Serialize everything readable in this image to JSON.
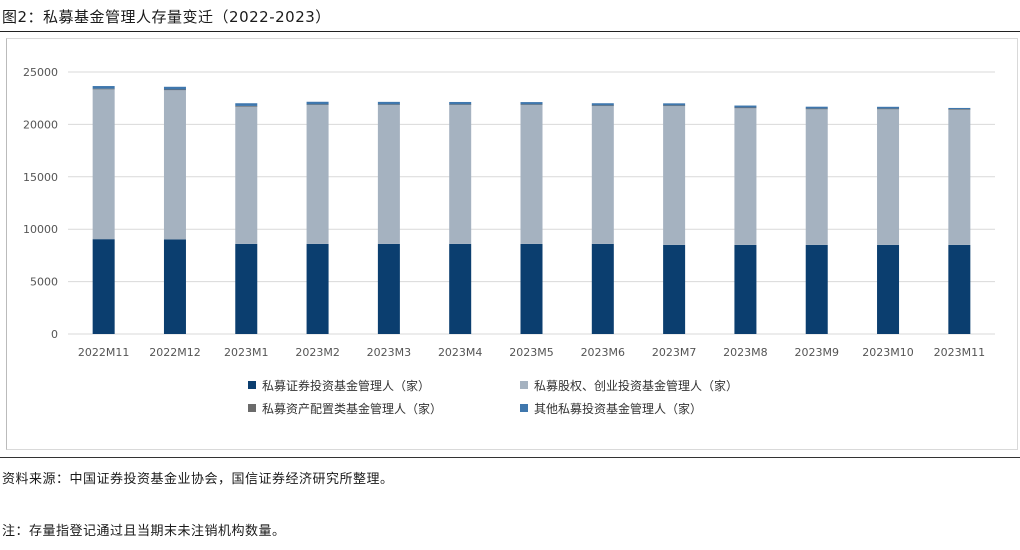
{
  "header": {
    "title": "图2：私募基金管理人存量变迁（2022-2023）"
  },
  "footer": {
    "source": "资料来源：中国证券投资基金业协会，国信证券经济研究所整理。",
    "note": "注：存量指登记通过且当期末未注销机构数量。"
  },
  "colors": {
    "series1": "#0b3e6f",
    "series2": "#a5b2c0",
    "series3": "#6b6b6b",
    "series4": "#3f77ad",
    "grid": "#d9d9d9"
  },
  "chart_data": {
    "type": "bar",
    "stacked": true,
    "title": "",
    "xlabel": "",
    "ylabel": "",
    "ylim": [
      0,
      25000
    ],
    "yticks": [
      0,
      5000,
      10000,
      15000,
      20000,
      25000
    ],
    "grid": true,
    "legend_position": "bottom",
    "categories": [
      "2022M11",
      "2022M12",
      "2023M1",
      "2023M2",
      "2023M3",
      "2023M4",
      "2023M5",
      "2023M6",
      "2023M7",
      "2023M8",
      "2023M9",
      "2023M10",
      "2023M11"
    ],
    "series": [
      {
        "name": "私募证券投资基金管理人（家）",
        "values": [
          9050,
          9020,
          8600,
          8600,
          8600,
          8600,
          8600,
          8600,
          8500,
          8500,
          8500,
          8500,
          8500
        ]
      },
      {
        "name": "私募股权、创业投资基金管理人（家）",
        "values": [
          14350,
          14300,
          13150,
          13300,
          13300,
          13300,
          13300,
          13200,
          13300,
          13100,
          13000,
          13000,
          12950
        ]
      },
      {
        "name": "私募资产配置类基金管理人（家）",
        "values": [
          10,
          10,
          10,
          10,
          10,
          10,
          10,
          10,
          10,
          10,
          10,
          10,
          10
        ]
      },
      {
        "name": "其他私募投资基金管理人（家）",
        "values": [
          250,
          260,
          260,
          250,
          240,
          230,
          220,
          210,
          200,
          190,
          180,
          170,
          110
        ]
      }
    ]
  }
}
